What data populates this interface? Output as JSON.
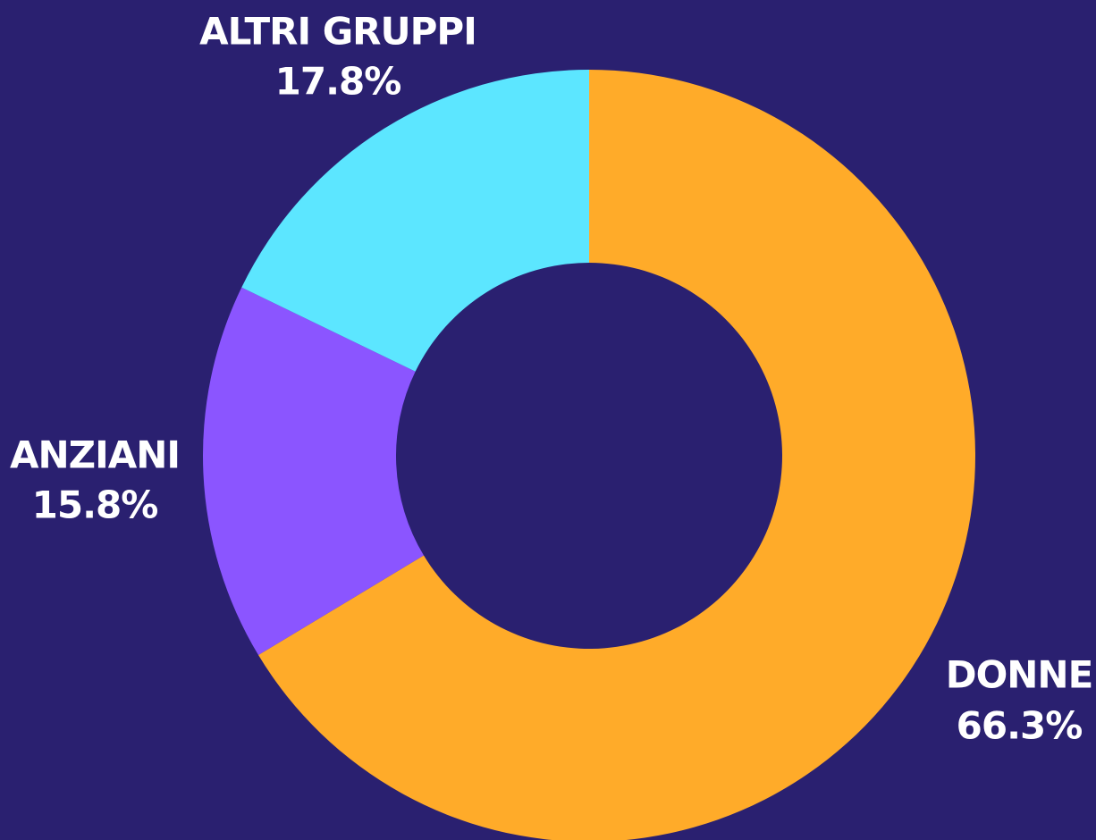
{
  "chart_data": {
    "type": "donut",
    "categories": [
      "DONNE",
      "ANZIANI",
      "ALTRI GRUPPI"
    ],
    "values": [
      66.3,
      15.8,
      17.8
    ],
    "value_labels": [
      "66.3%",
      "15.8%",
      "17.8%"
    ],
    "colors": [
      "#ffab29",
      "#8b55ff",
      "#5ce6ff"
    ]
  }
}
